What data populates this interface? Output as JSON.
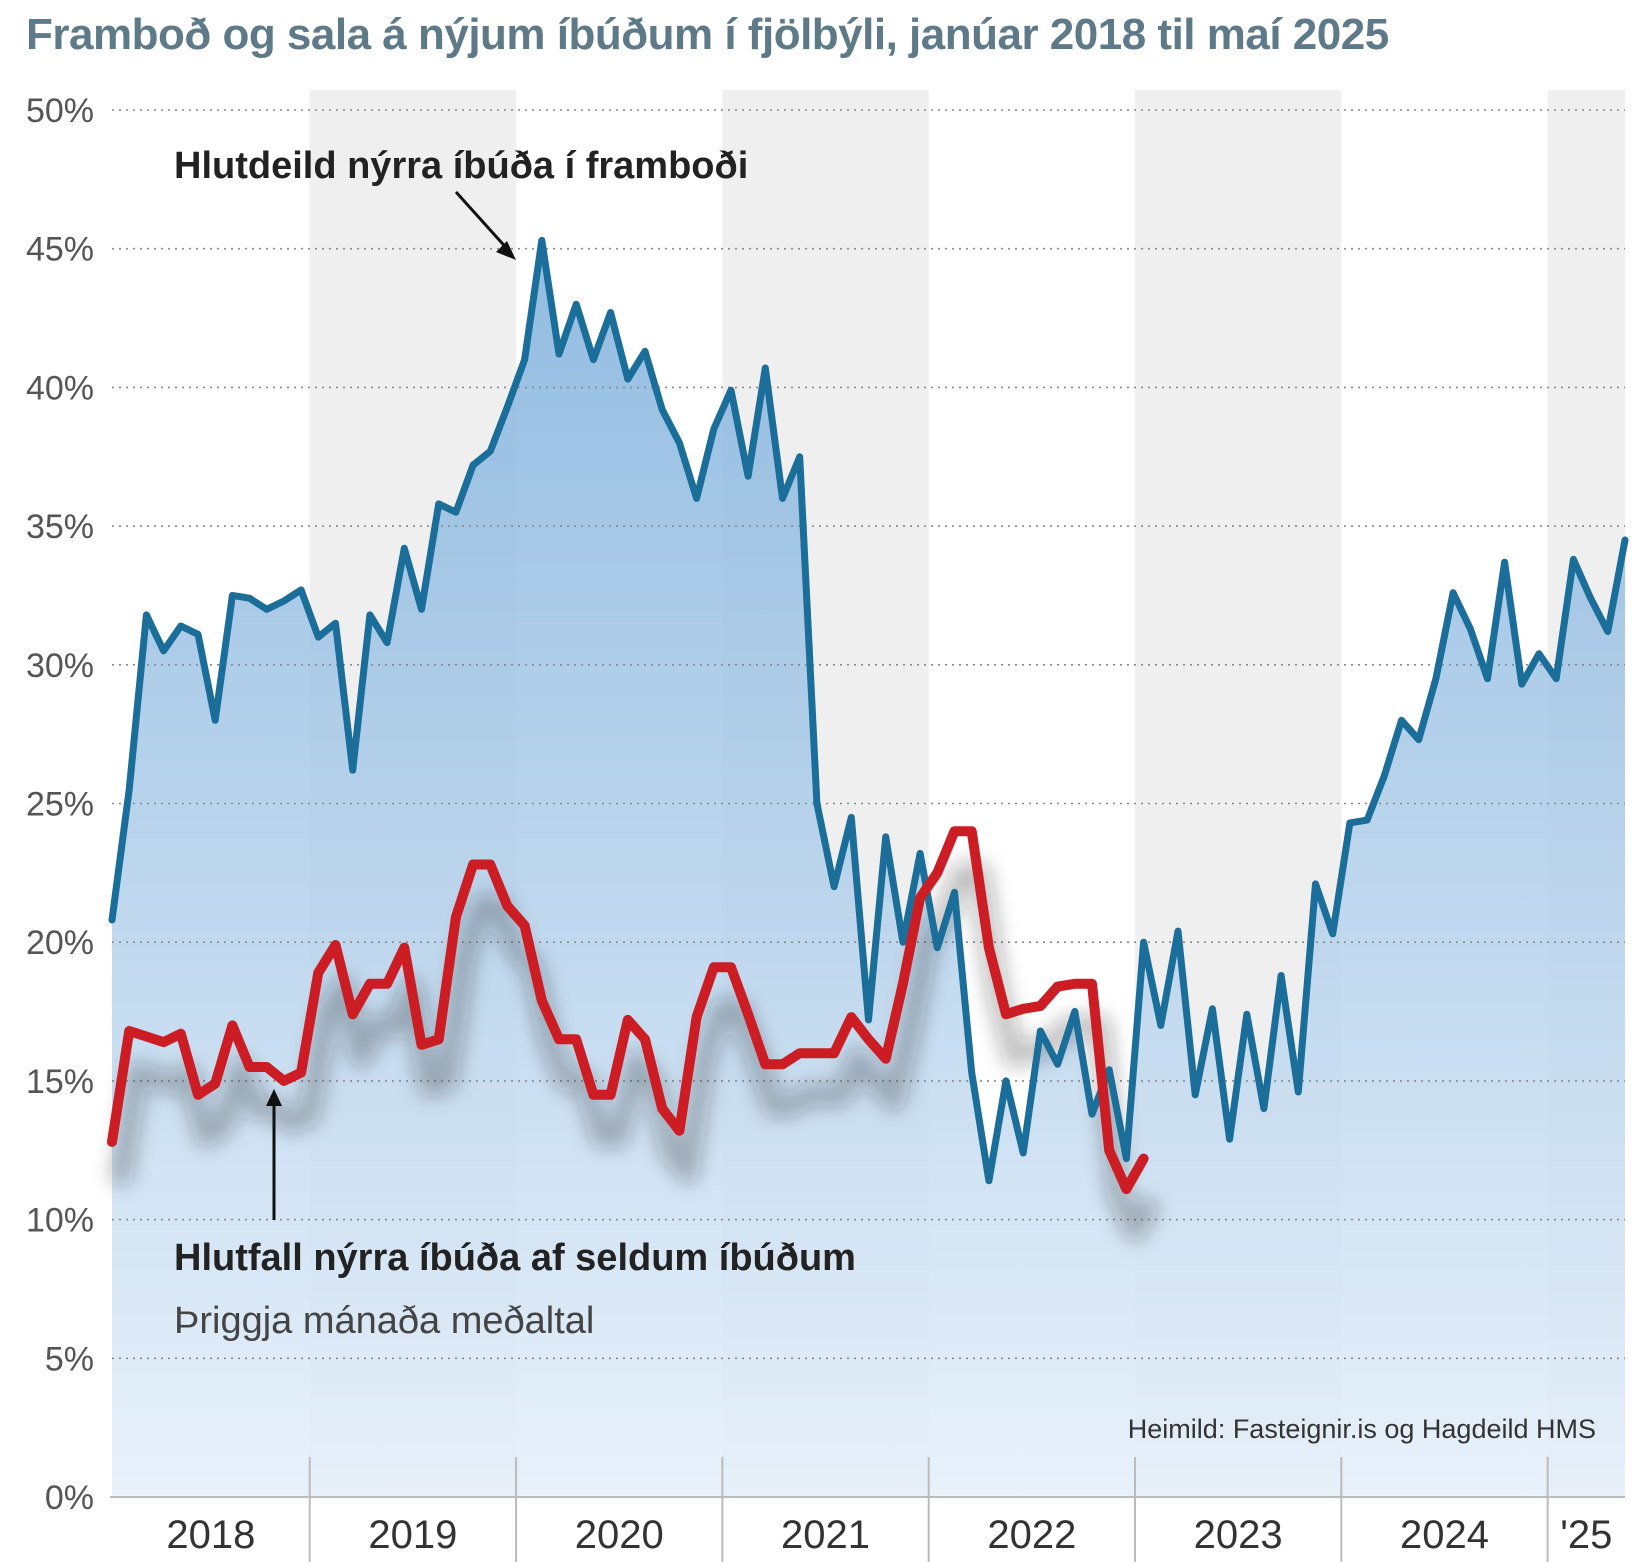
{
  "chart_data": {
    "type": "area",
    "title": "Framboð og sala á nýjum íbúðum í fjölbýli, janúar 2018 til maí 2025",
    "ylim": [
      0,
      50
    ],
    "yticks": [
      0,
      5,
      10,
      15,
      20,
      25,
      30,
      35,
      40,
      45,
      50
    ],
    "ytick_labels": [
      "0%",
      "5%",
      "10%",
      "15%",
      "20%",
      "25%",
      "30%",
      "35%",
      "40%",
      "45%",
      "50%"
    ],
    "x_start": "2018-01",
    "x_end": "2025-05",
    "year_labels": [
      "2018",
      "2019",
      "2020",
      "2021",
      "2022",
      "2023",
      "2024",
      "'25"
    ],
    "grid": "horizontal dotted",
    "series": [
      {
        "name": "Hlutdeild nýrra íbúða í framboði",
        "type": "area",
        "color": "#1a6e99",
        "points": [
          [
            "2018-01",
            20.8
          ],
          [
            "2018-02",
            25.5
          ],
          [
            "2018-03",
            31.8
          ],
          [
            "2018-04",
            30.5
          ],
          [
            "2018-05",
            31.4
          ],
          [
            "2018-06",
            31.1
          ],
          [
            "2018-07",
            28.0
          ],
          [
            "2018-08",
            32.5
          ],
          [
            "2018-09",
            32.4
          ],
          [
            "2018-10",
            32.0
          ],
          [
            "2018-11",
            32.3
          ],
          [
            "2018-12",
            32.7
          ],
          [
            "2019-01",
            31.0
          ],
          [
            "2019-02",
            31.5
          ],
          [
            "2019-03",
            26.2
          ],
          [
            "2019-04",
            31.8
          ],
          [
            "2019-05",
            30.8
          ],
          [
            "2019-06",
            34.2
          ],
          [
            "2019-07",
            32.0
          ],
          [
            "2019-08",
            35.8
          ],
          [
            "2019-09",
            35.5
          ],
          [
            "2019-10",
            37.2
          ],
          [
            "2019-11",
            37.7
          ],
          [
            "2019-12",
            39.3
          ],
          [
            "2020-01",
            41.0
          ],
          [
            "2020-02",
            45.3
          ],
          [
            "2020-03",
            41.2
          ],
          [
            "2020-04",
            43.0
          ],
          [
            "2020-05",
            41.0
          ],
          [
            "2020-06",
            42.7
          ],
          [
            "2020-07",
            40.3
          ],
          [
            "2020-08",
            41.3
          ],
          [
            "2020-09",
            39.2
          ],
          [
            "2020-10",
            38.0
          ],
          [
            "2020-11",
            36.0
          ],
          [
            "2020-12",
            38.5
          ],
          [
            "2021-01",
            39.9
          ],
          [
            "2021-02",
            36.8
          ],
          [
            "2021-03",
            40.7
          ],
          [
            "2021-04",
            36.0
          ],
          [
            "2021-05",
            37.5
          ],
          [
            "2021-06",
            25.0
          ],
          [
            "2021-07",
            22.0
          ],
          [
            "2021-08",
            24.5
          ],
          [
            "2021-09",
            17.2
          ],
          [
            "2021-10",
            23.8
          ],
          [
            "2021-11",
            20.0
          ],
          [
            "2021-12",
            23.2
          ],
          [
            "2022-01",
            19.8
          ],
          [
            "2022-02",
            21.8
          ],
          [
            "2022-03",
            15.3
          ],
          [
            "2022-04",
            11.4
          ],
          [
            "2022-05",
            15.0
          ],
          [
            "2022-06",
            12.4
          ],
          [
            "2022-07",
            16.8
          ],
          [
            "2022-08",
            15.6
          ],
          [
            "2022-09",
            17.5
          ],
          [
            "2022-10",
            13.8
          ],
          [
            "2022-11",
            15.4
          ],
          [
            "2022-12",
            12.2
          ],
          [
            "2023-01",
            20.0
          ],
          [
            "2023-02",
            17.0
          ],
          [
            "2023-03",
            20.4
          ],
          [
            "2023-04",
            14.5
          ],
          [
            "2023-05",
            17.6
          ],
          [
            "2023-06",
            12.9
          ],
          [
            "2023-07",
            17.4
          ],
          [
            "2023-08",
            14.0
          ],
          [
            "2023-09",
            18.8
          ],
          [
            "2023-10",
            14.6
          ],
          [
            "2023-11",
            22.1
          ],
          [
            "2023-12",
            20.3
          ],
          [
            "2024-01",
            24.3
          ],
          [
            "2024-02",
            24.4
          ],
          [
            "2024-03",
            26.0
          ],
          [
            "2024-04",
            28.0
          ],
          [
            "2024-05",
            27.3
          ],
          [
            "2024-06",
            29.5
          ],
          [
            "2024-07",
            32.6
          ],
          [
            "2024-08",
            31.3
          ],
          [
            "2024-09",
            29.5
          ],
          [
            "2024-10",
            33.7
          ],
          [
            "2024-11",
            29.3
          ],
          [
            "2024-12",
            30.4
          ],
          [
            "2025-01",
            29.5
          ],
          [
            "2025-02",
            33.8
          ],
          [
            "2025-03",
            32.4
          ],
          [
            "2025-04",
            31.2
          ],
          [
            "2025-05",
            34.5
          ]
        ]
      },
      {
        "name": "Hlutfall nýrra íbúða af seldum íbúðum",
        "subtitle": "Þriggja mánaða meðaltal",
        "type": "line",
        "color": "#cc1c24",
        "points": [
          [
            "2018-01",
            12.8
          ],
          [
            "2018-02",
            16.8
          ],
          [
            "2018-03",
            16.6
          ],
          [
            "2018-04",
            16.4
          ],
          [
            "2018-05",
            16.7
          ],
          [
            "2018-06",
            14.5
          ],
          [
            "2018-07",
            14.9
          ],
          [
            "2018-08",
            17.0
          ],
          [
            "2018-09",
            15.5
          ],
          [
            "2018-10",
            15.5
          ],
          [
            "2018-11",
            15.0
          ],
          [
            "2018-12",
            15.3
          ],
          [
            "2019-01",
            18.9
          ],
          [
            "2019-02",
            19.9
          ],
          [
            "2019-03",
            17.4
          ],
          [
            "2019-04",
            18.5
          ],
          [
            "2019-05",
            18.5
          ],
          [
            "2019-06",
            19.8
          ],
          [
            "2019-07",
            16.3
          ],
          [
            "2019-08",
            16.5
          ],
          [
            "2019-09",
            20.9
          ],
          [
            "2019-10",
            22.8
          ],
          [
            "2019-11",
            22.8
          ],
          [
            "2019-12",
            21.3
          ],
          [
            "2020-01",
            20.6
          ],
          [
            "2020-02",
            17.9
          ],
          [
            "2020-03",
            16.5
          ],
          [
            "2020-04",
            16.5
          ],
          [
            "2020-05",
            14.5
          ],
          [
            "2020-06",
            14.5
          ],
          [
            "2020-07",
            17.2
          ],
          [
            "2020-08",
            16.5
          ],
          [
            "2020-09",
            14.0
          ],
          [
            "2020-10",
            13.2
          ],
          [
            "2020-11",
            17.3
          ],
          [
            "2020-12",
            19.1
          ],
          [
            "2021-01",
            19.1
          ],
          [
            "2021-02",
            17.4
          ],
          [
            "2021-03",
            15.6
          ],
          [
            "2021-04",
            15.6
          ],
          [
            "2021-05",
            16.0
          ],
          [
            "2021-06",
            16.0
          ],
          [
            "2021-07",
            16.0
          ],
          [
            "2021-08",
            17.3
          ],
          [
            "2021-09",
            16.5
          ],
          [
            "2021-10",
            15.8
          ],
          [
            "2021-11",
            18.5
          ],
          [
            "2021-12",
            21.6
          ],
          [
            "2022-01",
            22.5
          ],
          [
            "2022-02",
            24.0
          ],
          [
            "2022-03",
            24.0
          ],
          [
            "2022-04",
            19.8
          ],
          [
            "2022-05",
            17.4
          ],
          [
            "2022-06",
            17.6
          ],
          [
            "2022-07",
            17.7
          ],
          [
            "2022-08",
            18.4
          ],
          [
            "2022-09",
            18.5
          ],
          [
            "2022-10",
            18.5
          ],
          [
            "2022-11",
            12.5
          ],
          [
            "2022-12",
            11.1
          ],
          [
            "2023-01",
            12.2
          ]
        ]
      }
    ],
    "annotations": {
      "supply_label": "Hlutdeild nýrra íbúða í framboði",
      "sales_label": "Hlutfall nýrra íbúða af seldum íbúðum",
      "sales_sublabel": "Þriggja mánaða meðaltal",
      "source": "Heimild: Fasteignir.is og Hagdeild HMS"
    }
  }
}
